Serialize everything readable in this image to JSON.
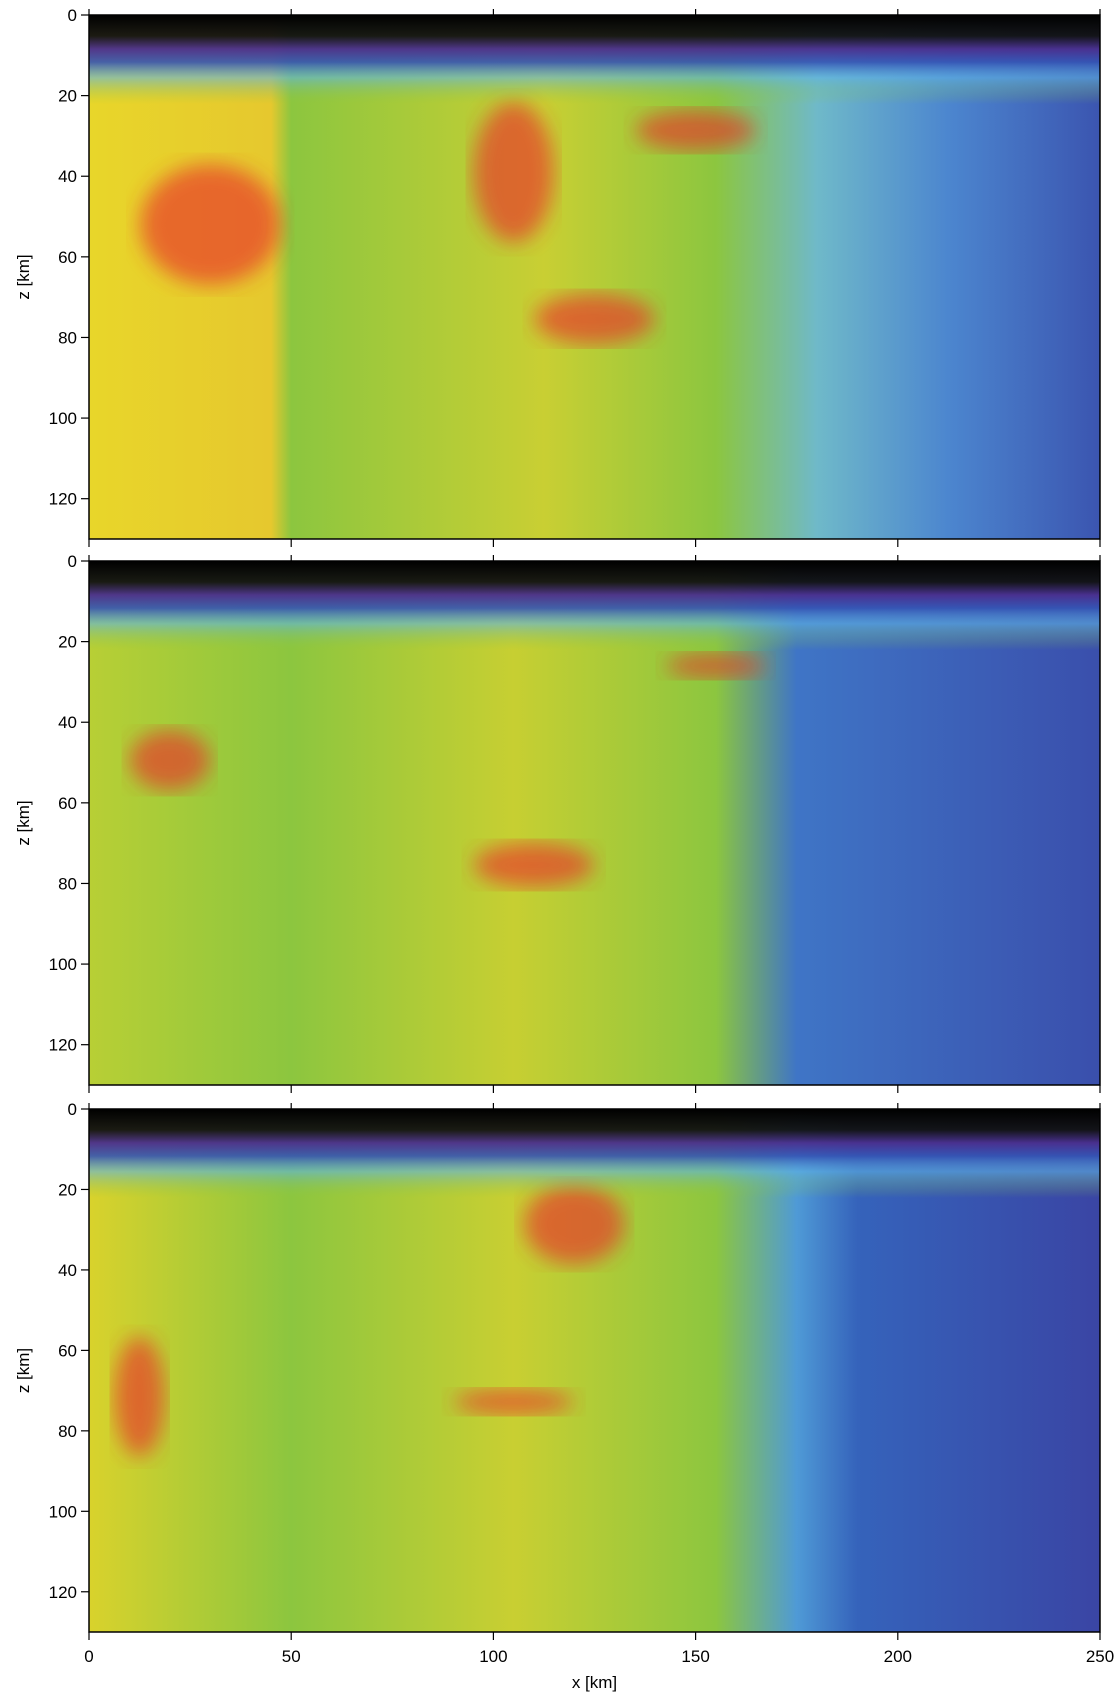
{
  "chart_data": [
    {
      "type": "heatmap",
      "ylabel": "z [km]",
      "xlim": [
        0,
        250
      ],
      "ylim": [
        0,
        130
      ],
      "y_inverted": true,
      "xticks": [
        0,
        50,
        100,
        150,
        200,
        250
      ],
      "yticks": [
        0,
        20,
        40,
        60,
        80,
        100,
        120
      ],
      "xtick_labels": false
    },
    {
      "type": "heatmap",
      "ylabel": "z [km]",
      "xlim": [
        0,
        250
      ],
      "ylim": [
        0,
        130
      ],
      "y_inverted": true,
      "xticks": [
        0,
        50,
        100,
        150,
        200,
        250
      ],
      "yticks": [
        0,
        20,
        40,
        60,
        80,
        100,
        120
      ],
      "xtick_labels": false
    },
    {
      "type": "heatmap",
      "ylabel": "z [km]",
      "xlabel": "x [km]",
      "xlim": [
        0,
        250
      ],
      "ylim": [
        0,
        130
      ],
      "y_inverted": true,
      "xticks": [
        0,
        50,
        100,
        150,
        200,
        250
      ],
      "yticks": [
        0,
        20,
        40,
        60,
        80,
        100,
        120
      ],
      "xtick_labels": true
    }
  ]
}
